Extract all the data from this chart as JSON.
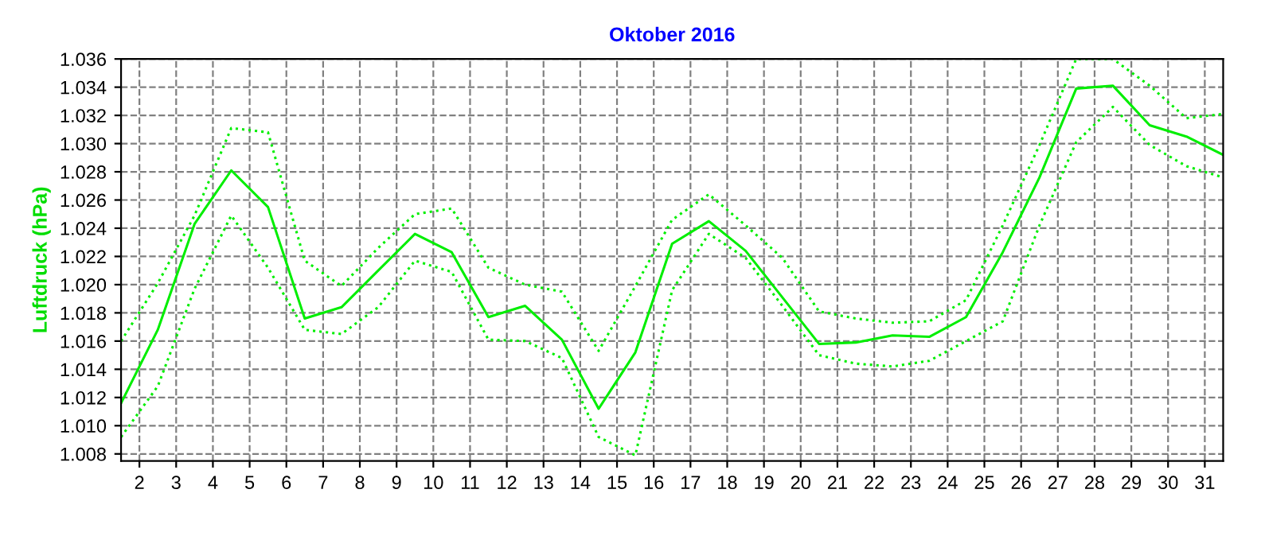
{
  "chart_data": {
    "type": "line",
    "title": "Oktober 2016",
    "ylabel": "Luftdruck (hPa)",
    "x": [
      1.5,
      2.5,
      3.5,
      4.5,
      5.5,
      6.5,
      7.5,
      8.5,
      9.5,
      10.5,
      11.5,
      12.5,
      13.5,
      14.5,
      15.5,
      16.5,
      17.5,
      18.5,
      19.5,
      20.5,
      21.5,
      22.5,
      23.5,
      24.5,
      25.5,
      26.5,
      27.5,
      28.5,
      29.5,
      30.5,
      31.5
    ],
    "series": [
      {
        "color": "#00ee00",
        "line_style": "dotted",
        "values": [
          1.016,
          1.0201,
          1.0249,
          1.0311,
          1.0308,
          1.0217,
          1.0199,
          1.0226,
          1.025,
          1.0254,
          1.0212,
          1.02,
          1.0195,
          1.0153,
          1.0199,
          1.0246,
          1.0264,
          1.0242,
          1.0219,
          1.0181,
          1.0176,
          1.0173,
          1.0174,
          1.0189,
          1.0242,
          1.0299,
          1.036,
          1.036,
          1.0341,
          1.0318,
          1.0321
        ]
      },
      {
        "color": "#00ee00",
        "line_style": "solid",
        "values": [
          1.0116,
          1.0168,
          1.0243,
          1.0281,
          1.0255,
          1.0176,
          1.0184,
          1.021,
          1.0236,
          1.0223,
          1.0177,
          1.0185,
          1.0161,
          1.0112,
          1.0152,
          1.0229,
          1.0245,
          1.0224,
          1.0191,
          1.0158,
          1.0159,
          1.0164,
          1.0163,
          1.0177,
          1.0223,
          1.0276,
          1.0339,
          1.0341,
          1.0313,
          1.0305,
          1.0292
        ]
      },
      {
        "color": "#00ee00",
        "line_style": "dotted",
        "values": [
          1.0092,
          1.0128,
          1.0197,
          1.0249,
          1.0212,
          1.0168,
          1.0165,
          1.0184,
          1.0217,
          1.0209,
          1.0161,
          1.016,
          1.0148,
          1.0092,
          1.0079,
          1.0196,
          1.0236,
          1.0219,
          1.0185,
          1.015,
          1.0144,
          1.0142,
          1.0146,
          1.016,
          1.0174,
          1.0242,
          1.0301,
          1.0326,
          1.0299,
          1.0284,
          1.0276
        ]
      }
    ],
    "xlim": [
      1.5,
      31.5
    ],
    "xticks": [
      2,
      3,
      4,
      5,
      6,
      7,
      8,
      9,
      10,
      11,
      12,
      13,
      14,
      15,
      16,
      17,
      18,
      19,
      20,
      21,
      22,
      23,
      24,
      25,
      26,
      27,
      28,
      29,
      30,
      31
    ],
    "ylim": [
      1.0075,
      1.036
    ],
    "yticks": [
      1.008,
      {
        "value": 1.01,
        "label": "1.010"
      },
      1.012,
      1.014,
      1.016,
      1.018,
      {
        "value": 1.02,
        "label": "1.020"
      },
      1.022,
      1.024,
      1.026,
      1.028,
      {
        "value": 1.03,
        "label": "1.030"
      },
      1.032,
      1.034,
      1.036
    ],
    "grid": true
  }
}
